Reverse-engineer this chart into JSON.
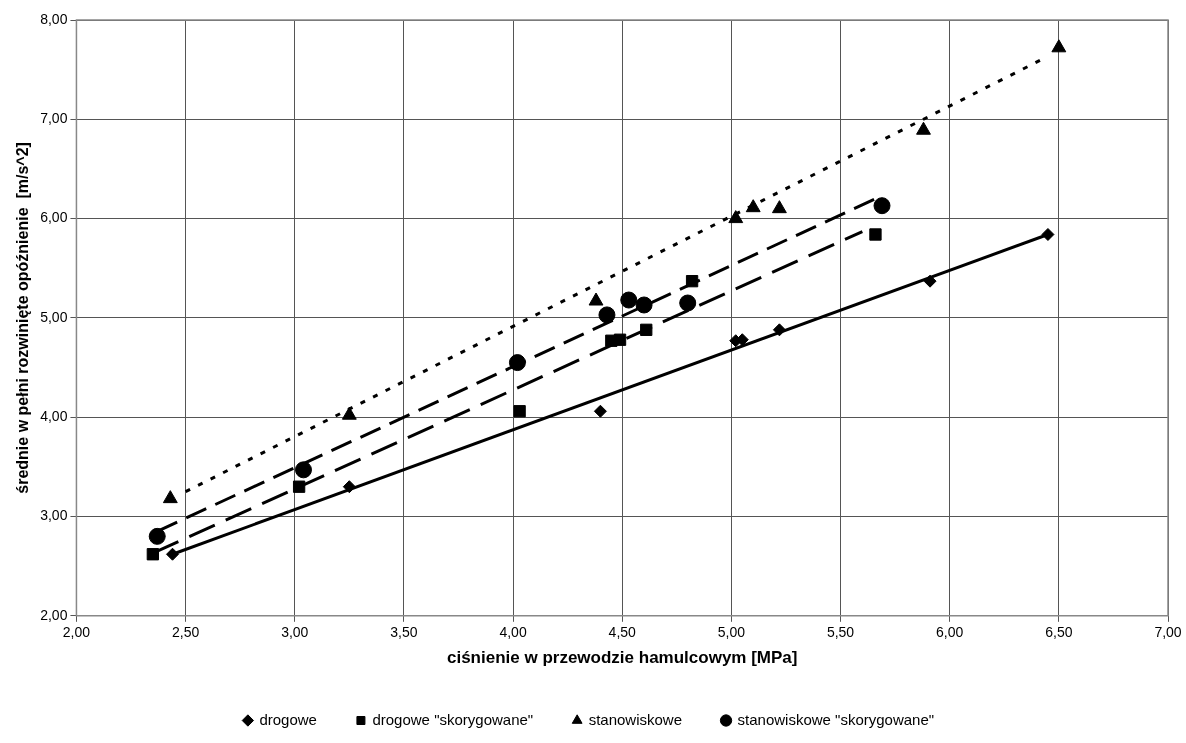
{
  "chart_data": {
    "type": "scatter",
    "xlabel": "ciśnienie w przewodzie hamulcowym [MPa]",
    "ylabel": "średnie w pełni rozwinięte opóźnienie  [m/s^2]",
    "xlim": [
      2,
      7
    ],
    "ylim": [
      2,
      8
    ],
    "xticks": [
      {
        "value": 2,
        "label": "2,00"
      },
      {
        "value": 2.5,
        "label": "2,50"
      },
      {
        "value": 3,
        "label": "3,00"
      },
      {
        "value": 3.5,
        "label": "3,50"
      },
      {
        "value": 4,
        "label": "4,00"
      },
      {
        "value": 4.5,
        "label": "4,50"
      },
      {
        "value": 5,
        "label": "5,00"
      },
      {
        "value": 5.5,
        "label": "5,50"
      },
      {
        "value": 6,
        "label": "6,00"
      },
      {
        "value": 6.5,
        "label": "6,50"
      },
      {
        "value": 7,
        "label": "7,00"
      }
    ],
    "yticks": [
      {
        "value": 2,
        "label": "2,00"
      },
      {
        "value": 3,
        "label": "3,00"
      },
      {
        "value": 4,
        "label": "4,00"
      },
      {
        "value": 5,
        "label": "5,00"
      },
      {
        "value": 6,
        "label": "6,00"
      },
      {
        "value": 7,
        "label": "7,00"
      },
      {
        "value": 8,
        "label": "8,00"
      }
    ],
    "grid": true,
    "legend": "bottom",
    "series": [
      {
        "name": "drogowe",
        "color": "#000000",
        "marker": "diamond",
        "x": [
          2.44,
          3.25,
          4.4,
          5.02,
          5.05,
          5.22,
          5.91,
          6.45
        ],
        "values": [
          2.62,
          3.3,
          4.06,
          4.77,
          4.78,
          4.88,
          5.37,
          5.84
        ]
      },
      {
        "name": "drogowe \"skorygowane\"",
        "color": "#000000",
        "marker": "square",
        "x": [
          2.35,
          3.02,
          4.03,
          4.45,
          4.49,
          4.61,
          4.82,
          5.66
        ],
        "values": [
          2.62,
          3.3,
          4.06,
          4.77,
          4.78,
          4.88,
          5.37,
          5.84
        ]
      },
      {
        "name": "stanowiskowe",
        "color": "#000000",
        "marker": "triangle",
        "x": [
          2.43,
          3.25,
          4.38,
          5.02,
          5.1,
          5.22,
          5.88,
          6.5
        ],
        "values": [
          3.18,
          4.02,
          5.17,
          6.0,
          6.11,
          6.1,
          6.89,
          7.72
        ]
      },
      {
        "name": "stanowiskowe \"skorygowane\"",
        "color": "#000000",
        "marker": "circle",
        "x": [
          2.37,
          3.04,
          4.02,
          4.43,
          4.53,
          4.6,
          4.8,
          5.69
        ],
        "values": [
          2.8,
          3.47,
          4.55,
          5.03,
          5.18,
          5.13,
          5.15,
          6.13
        ]
      },
      {
        "type": "line",
        "color": "#000000",
        "marker": "none",
        "line_style": "solid",
        "x": [
          2.44,
          6.45
        ],
        "values": [
          2.62,
          5.84
        ]
      },
      {
        "type": "line",
        "color": "#000000",
        "marker": "none",
        "line_style": "dashed",
        "x": [
          2.35,
          5.6
        ],
        "values": [
          2.63,
          5.87
        ]
      },
      {
        "type": "line",
        "color": "#000000",
        "marker": "none",
        "line_style": "dashed",
        "x": [
          2.37,
          5.68
        ],
        "values": [
          2.85,
          6.22
        ]
      },
      {
        "type": "line",
        "color": "#000000",
        "marker": "none",
        "line_style": "dotted",
        "x": [
          2.5,
          6.42
        ],
        "values": [
          3.25,
          7.6
        ]
      }
    ]
  }
}
